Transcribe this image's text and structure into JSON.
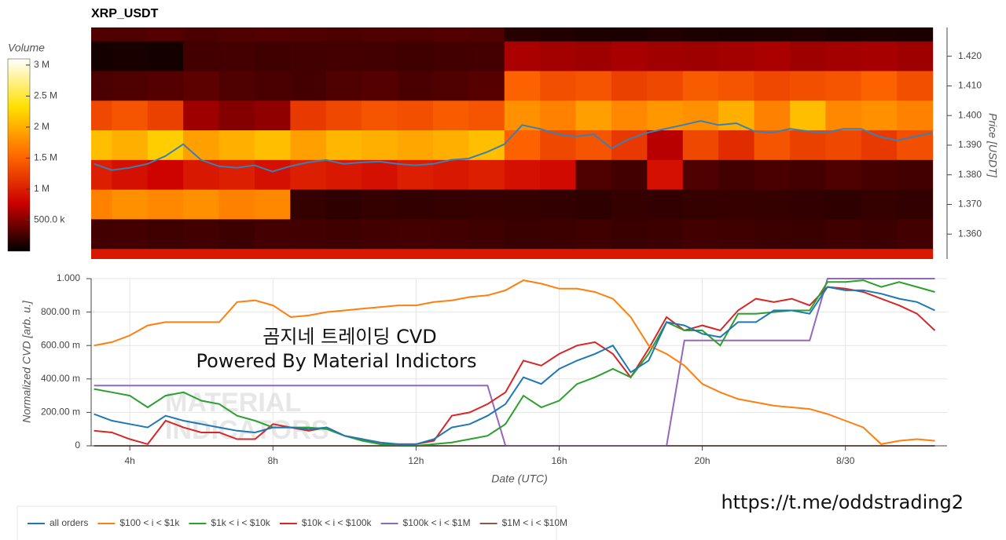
{
  "chart_data": [
    {
      "type": "heatmap",
      "title": "XRP_USDT",
      "colorbar_title": "Volume",
      "y_label": "Price [USDT]",
      "x": [
        3,
        4,
        5,
        6,
        7,
        8,
        9,
        10,
        11,
        12,
        13,
        14,
        15,
        16,
        17,
        18,
        19,
        20,
        21,
        22,
        23,
        24,
        25,
        26
      ],
      "y": [
        1.43,
        1.42,
        1.41,
        1.4,
        1.39,
        1.38,
        1.37,
        1.36,
        1.35
      ],
      "z": [
        [
          300000,
          300000,
          320000,
          280000,
          300000,
          310000,
          300000,
          290000,
          300000,
          300000,
          310000,
          300000,
          150000,
          120000,
          110000,
          100000,
          120000,
          110000,
          100000,
          110000,
          120000,
          100000,
          110000,
          100000
        ],
        [
          80000,
          90000,
          80000,
          250000,
          260000,
          240000,
          250000,
          260000,
          250000,
          240000,
          250000,
          260000,
          650000,
          620000,
          600000,
          640000,
          610000,
          600000,
          620000,
          650000,
          600000,
          620000,
          630000,
          600000
        ],
        [
          280000,
          300000,
          320000,
          350000,
          300000,
          280000,
          260000,
          300000,
          320000,
          280000,
          300000,
          330000,
          1500000,
          1350000,
          1400000,
          1250000,
          1300000,
          1450000,
          1400000,
          1300000,
          1350000,
          1400000,
          1500000,
          1350000
        ],
        [
          1300000,
          1400000,
          1250000,
          600000,
          500000,
          550000,
          1200000,
          1300000,
          1400000,
          1350000,
          1450000,
          1400000,
          1800000,
          1700000,
          1900000,
          1750000,
          1850000,
          1800000,
          2000000,
          1700000,
          2100000,
          1750000,
          1800000,
          1700000
        ],
        [
          2100000,
          2000000,
          2200000,
          1900000,
          2000000,
          2100000,
          1900000,
          2050000,
          2000000,
          1950000,
          2000000,
          2100000,
          1500000,
          1300000,
          1400000,
          1200000,
          700000,
          1300000,
          1100000,
          1400000,
          1250000,
          1300000,
          1200000,
          1350000
        ],
        [
          1000000,
          900000,
          800000,
          950000,
          1000000,
          900000,
          1000000,
          950000,
          900000,
          1000000,
          950000,
          1000000,
          900000,
          850000,
          300000,
          250000,
          900000,
          300000,
          250000,
          280000,
          260000,
          300000,
          270000,
          250000
        ],
        [
          1700000,
          1800000,
          1750000,
          1800000,
          1700000,
          1750000,
          200000,
          180000,
          200000,
          190000,
          200000,
          210000,
          200000,
          190000,
          180000,
          200000,
          190000,
          200000,
          210000,
          200000,
          190000,
          180000,
          200000,
          190000
        ],
        [
          250000,
          260000,
          240000,
          250000,
          230000,
          260000,
          250000,
          240000,
          250000,
          260000,
          250000,
          240000,
          220000,
          230000,
          240000,
          220000,
          230000,
          250000,
          240000,
          230000,
          220000,
          240000,
          230000,
          250000
        ],
        [
          950000,
          950000,
          950000,
          950000,
          950000,
          950000,
          950000,
          950000,
          950000,
          950000,
          950000,
          950000,
          950000,
          950000,
          950000,
          950000,
          950000,
          950000,
          950000,
          950000,
          950000,
          950000,
          950000,
          950000
        ]
      ],
      "colorscale": [
        "#000000",
        "#cc0000",
        "#ff6a00",
        "#ffe000",
        "#ffffff"
      ],
      "zlim": [
        0,
        3100000
      ],
      "zticks": [
        {
          "value": 500000,
          "label": "500.0 k"
        },
        {
          "value": 1000000,
          "label": "1 M"
        },
        {
          "value": 1500000,
          "label": "1.5 M"
        },
        {
          "value": 2000000,
          "label": "2 M"
        },
        {
          "value": 2500000,
          "label": "2.5 M"
        },
        {
          "value": 3000000,
          "label": "3 M"
        }
      ],
      "xlim": [
        2.92,
        26.84
      ],
      "ylim": [
        1.3516,
        1.4297
      ],
      "yticks": [
        {
          "value": 1.36,
          "label": "1.360"
        },
        {
          "value": 1.37,
          "label": "1.370"
        },
        {
          "value": 1.38,
          "label": "1.380"
        },
        {
          "value": 1.39,
          "label": "1.390"
        },
        {
          "value": 1.4,
          "label": "1.400"
        },
        {
          "value": 1.41,
          "label": "1.410"
        },
        {
          "value": 1.42,
          "label": "1.420"
        }
      ],
      "price": {
        "color": "#3a7fb5",
        "x": [
          3,
          3.5,
          4,
          4.5,
          5,
          5.5,
          6,
          6.5,
          7,
          7.5,
          8,
          8.5,
          9,
          9.5,
          10,
          10.5,
          11,
          11.5,
          12,
          12.5,
          13,
          13.5,
          14,
          14.5,
          15,
          15.5,
          16,
          16.5,
          17,
          17.5,
          18,
          18.5,
          19,
          19.5,
          20,
          20.5,
          21,
          21.5,
          22,
          22.5,
          23,
          23.5,
          24,
          24.5,
          25,
          25.5,
          26,
          26.5
        ],
        "values": [
          1.3837,
          1.3816,
          1.3824,
          1.3837,
          1.3863,
          1.3903,
          1.385,
          1.3829,
          1.3824,
          1.3832,
          1.3811,
          1.3829,
          1.3842,
          1.385,
          1.3837,
          1.3842,
          1.3845,
          1.3837,
          1.3832,
          1.3837,
          1.385,
          1.3855,
          1.3876,
          1.3903,
          1.3968,
          1.3955,
          1.3937,
          1.3929,
          1.3937,
          1.3889,
          1.3921,
          1.3942,
          1.3955,
          1.3968,
          1.3982,
          1.3968,
          1.3974,
          1.3947,
          1.3942,
          1.3955,
          1.3947,
          1.3942,
          1.3955,
          1.3955,
          1.3929,
          1.3916,
          1.3929,
          1.3942
        ]
      }
    },
    {
      "type": "line",
      "x_label": "Date (UTC)",
      "y_label": "Normalized CVD [arb. u.]",
      "x": [
        3,
        3.5,
        4,
        4.5,
        5,
        5.5,
        6,
        6.5,
        7,
        7.5,
        8,
        8.5,
        9,
        9.5,
        10,
        10.5,
        11,
        11.5,
        12,
        12.5,
        13,
        13.5,
        14,
        14.5,
        15,
        15.5,
        16,
        16.5,
        17,
        17.5,
        18,
        18.5,
        19,
        19.5,
        20,
        20.5,
        21,
        21.5,
        22,
        22.5,
        23,
        23.5,
        24,
        24.5,
        25,
        25.5,
        26,
        26.5
      ],
      "series": [
        {
          "name": "all orders",
          "color": "#1f77b4",
          "values": [
            0.19,
            0.15,
            0.13,
            0.11,
            0.18,
            0.15,
            0.13,
            0.11,
            0.09,
            0.08,
            0.11,
            0.11,
            0.1,
            0.11,
            0.06,
            0.04,
            0.02,
            0.01,
            0.01,
            0.04,
            0.11,
            0.13,
            0.18,
            0.25,
            0.41,
            0.37,
            0.46,
            0.51,
            0.55,
            0.6,
            0.44,
            0.51,
            0.74,
            0.72,
            0.67,
            0.65,
            0.74,
            0.74,
            0.81,
            0.81,
            0.79,
            0.95,
            0.93,
            0.93,
            0.91,
            0.88,
            0.86,
            0.81
          ]
        },
        {
          "name": "$100 < i < $1k",
          "color": "#ff7f0e",
          "values": [
            0.6,
            0.62,
            0.66,
            0.72,
            0.74,
            0.74,
            0.74,
            0.74,
            0.86,
            0.87,
            0.84,
            0.77,
            0.78,
            0.8,
            0.81,
            0.82,
            0.83,
            0.84,
            0.84,
            0.86,
            0.87,
            0.89,
            0.9,
            0.93,
            0.99,
            0.97,
            0.94,
            0.94,
            0.92,
            0.88,
            0.77,
            0.6,
            0.55,
            0.48,
            0.37,
            0.32,
            0.28,
            0.26,
            0.24,
            0.23,
            0.22,
            0.19,
            0.15,
            0.11,
            0.01,
            0.03,
            0.04,
            0.03
          ]
        },
        {
          "name": "$1k < i < $10k",
          "color": "#2ca02c",
          "values": [
            0.34,
            0.32,
            0.3,
            0.23,
            0.3,
            0.32,
            0.27,
            0.25,
            0.18,
            0.15,
            0.11,
            0.11,
            0.11,
            0.1,
            0.06,
            0.03,
            0.01,
            0,
            0,
            0.01,
            0.02,
            0.04,
            0.06,
            0.13,
            0.3,
            0.23,
            0.27,
            0.37,
            0.41,
            0.46,
            0.41,
            0.55,
            0.74,
            0.69,
            0.69,
            0.6,
            0.79,
            0.79,
            0.8,
            0.81,
            0.81,
            0.98,
            0.98,
            0.99,
            0.95,
            0.98,
            0.95,
            0.92
          ]
        },
        {
          "name": "$10k < i < $100k",
          "color": "#d62728",
          "values": [
            0.09,
            0.08,
            0.04,
            0.01,
            0.15,
            0.11,
            0.08,
            0.08,
            0.04,
            0.04,
            0.13,
            0.11,
            0.09,
            0.11,
            0.06,
            0.04,
            0.01,
            0.01,
            0.01,
            0.03,
            0.18,
            0.2,
            0.25,
            0.32,
            0.51,
            0.48,
            0.55,
            0.6,
            0.62,
            0.55,
            0.41,
            0.58,
            0.77,
            0.69,
            0.72,
            0.69,
            0.81,
            0.88,
            0.86,
            0.88,
            0.84,
            0.95,
            0.94,
            0.92,
            0.88,
            0.84,
            0.79,
            0.69
          ]
        },
        {
          "name": "$100k < i < $1M",
          "color": "#9467bd",
          "values": [
            0.36,
            0.36,
            0.36,
            0.36,
            0.36,
            0.36,
            0.36,
            0.36,
            0.36,
            0.36,
            0.36,
            0.36,
            0.36,
            0.36,
            0.36,
            0.36,
            0.36,
            0.36,
            0.36,
            0.36,
            0.36,
            0.36,
            0.36,
            0,
            0,
            0,
            0,
            0,
            0,
            0,
            0,
            0,
            0,
            0.63,
            0.63,
            0.63,
            0.63,
            0.63,
            0.63,
            0.63,
            0.63,
            1,
            1,
            1,
            1,
            1,
            1,
            1
          ]
        },
        {
          "name": "$1M < i < $10M",
          "color": "#8c564b",
          "values": [
            0,
            0,
            0,
            0,
            0,
            0,
            0,
            0,
            0,
            0,
            0,
            0,
            0,
            0,
            0,
            0,
            0,
            0,
            0,
            0,
            0,
            0,
            0,
            0,
            0,
            0,
            0,
            0,
            0,
            0,
            0,
            0,
            0,
            0,
            0,
            0,
            0,
            0,
            0,
            0,
            0,
            0,
            0,
            0,
            0,
            0,
            0,
            0
          ]
        }
      ],
      "xlim": [
        2.92,
        26.84
      ],
      "xticks": [
        {
          "value": 4,
          "label": "4h"
        },
        {
          "value": 8,
          "label": "8h"
        },
        {
          "value": 12,
          "label": "12h"
        },
        {
          "value": 16,
          "label": "16h"
        },
        {
          "value": 20,
          "label": "20h"
        },
        {
          "value": 24,
          "label": "8/30"
        }
      ],
      "ylim": [
        0,
        1
      ],
      "yticks": [
        0,
        {
          "value": 0.2,
          "label": "200.00 m"
        },
        {
          "value": 0.4,
          "label": "400.00 m"
        },
        {
          "value": 0.6,
          "label": "600.00 m"
        },
        {
          "value": 0.8,
          "label": "800.00 m"
        },
        {
          "value": 1,
          "label": "1.000"
        }
      ],
      "grid": true
    }
  ],
  "overlay": [
    "곰지네 트레이딩 CVD",
    "Powered By Material Indictors"
  ],
  "watermark": [
    "MATERIAL",
    "INDICATORS"
  ],
  "link": "https://t.me/oddstrading2"
}
